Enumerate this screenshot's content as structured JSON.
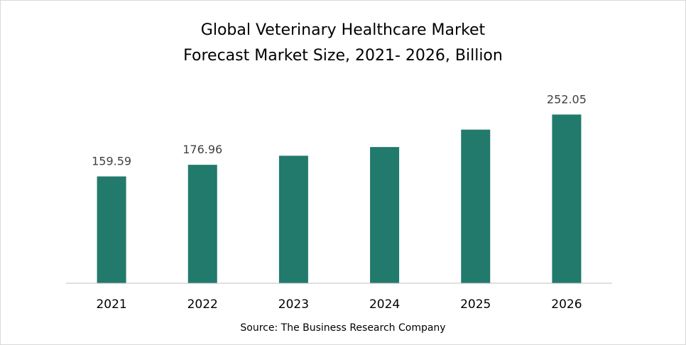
{
  "chart_data": {
    "type": "bar",
    "title": "Global Veterinary Healthcare Market",
    "subtitle": "Forecast Market Size, 2021- 2026, Billion",
    "categories": [
      "2021",
      "2022",
      "2023",
      "2024",
      "2025",
      "2026"
    ],
    "values": [
      159.59,
      176.96,
      190.5,
      203.5,
      229.5,
      252.05
    ],
    "data_labels": [
      "159.59",
      "176.96",
      "",
      "",
      "",
      "252.05"
    ],
    "bar_color": "#217a6b",
    "ylim": [
      0,
      280
    ],
    "y_axis_visible": false,
    "grid": false,
    "legend": "none"
  },
  "source": "Source: The Business Research Company"
}
